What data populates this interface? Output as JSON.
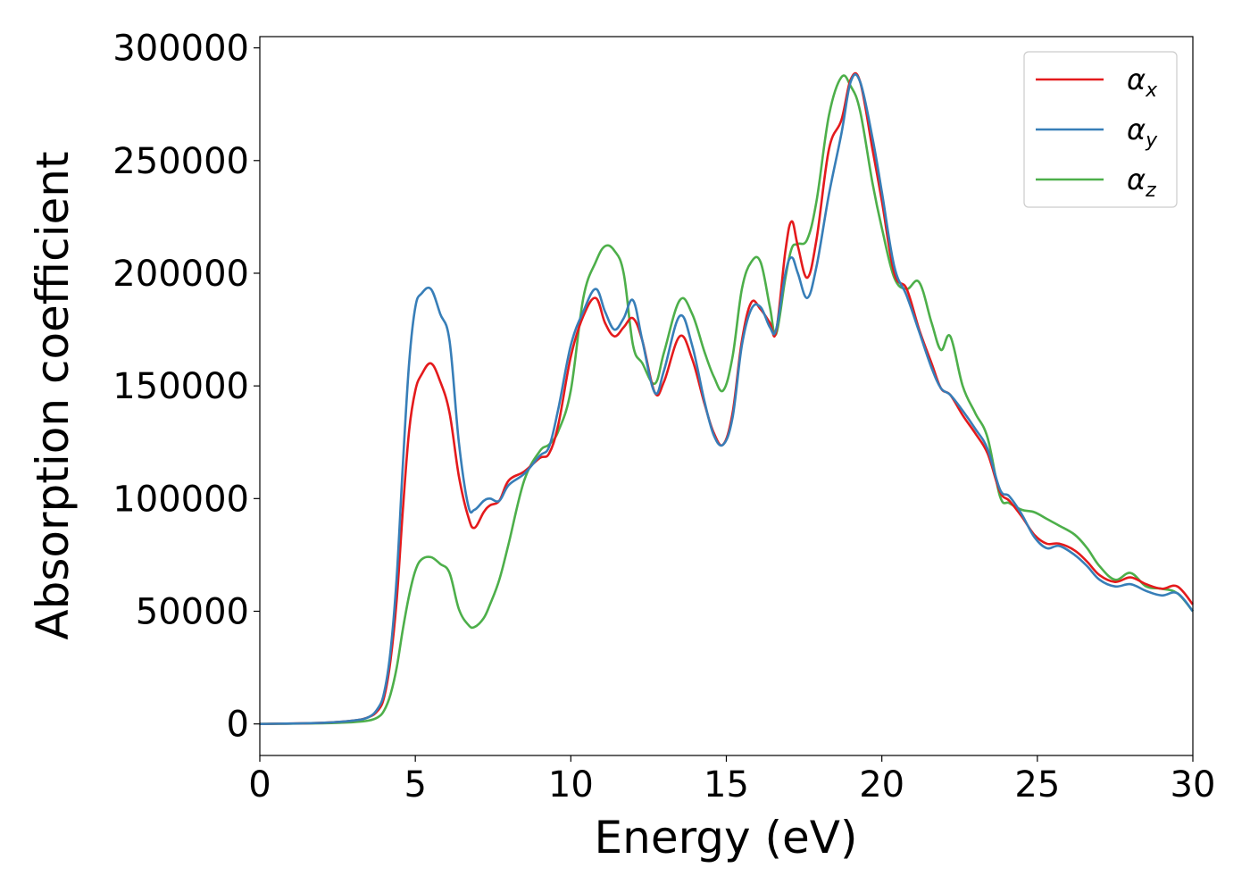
{
  "chart_data": {
    "type": "line",
    "xlabel": "Energy (eV)",
    "ylabel": "Absorption coefficient",
    "xlim": [
      0,
      30
    ],
    "ylim": [
      -14000,
      305000
    ],
    "xticks": [
      0,
      5,
      10,
      15,
      20,
      25,
      30
    ],
    "xtick_labels": [
      "0",
      "5",
      "10",
      "15",
      "20",
      "25",
      "30"
    ],
    "yticks": [
      0,
      50000,
      100000,
      150000,
      200000,
      250000,
      300000
    ],
    "ytick_labels": [
      "0",
      "50000",
      "100000",
      "150000",
      "200000",
      "250000",
      "300000"
    ],
    "grid": false,
    "legend_position": "top-right",
    "series": [
      {
        "name": "α",
        "subscript": "x",
        "color": "#e41a1c",
        "x": [
          0,
          2,
          3,
          3.5,
          3.8,
          4.0,
          4.2,
          4.4,
          4.6,
          4.8,
          5.0,
          5.2,
          5.5,
          5.8,
          6.1,
          6.4,
          6.7,
          6.9,
          7.2,
          7.4,
          7.7,
          8.0,
          8.5,
          9.0,
          9.3,
          9.6,
          10.0,
          10.4,
          10.8,
          11.1,
          11.4,
          11.7,
          12.0,
          12.3,
          12.7,
          13.0,
          13.5,
          13.9,
          14.3,
          14.6,
          14.9,
          15.2,
          15.5,
          15.8,
          16.1,
          16.4,
          16.6,
          16.9,
          17.1,
          17.3,
          17.6,
          17.9,
          18.3,
          18.7,
          19.0,
          19.3,
          19.7,
          20.0,
          20.4,
          20.8,
          21.2,
          21.6,
          21.9,
          22.2,
          22.6,
          23.0,
          23.4,
          23.8,
          24.1,
          24.5,
          24.9,
          25.3,
          25.7,
          26.2,
          26.6,
          27.0,
          27.5,
          28.0,
          28.5,
          29.0,
          29.5,
          30.0
        ],
        "y": [
          0,
          500,
          1500,
          3000,
          6000,
          12000,
          28000,
          55000,
          95000,
          130000,
          148000,
          155000,
          160000,
          152000,
          138000,
          110000,
          92000,
          87000,
          94000,
          97000,
          99000,
          108000,
          112000,
          118000,
          120000,
          133000,
          163000,
          181000,
          189000,
          178000,
          172000,
          176000,
          180000,
          170000,
          147000,
          152000,
          172000,
          162000,
          142000,
          129000,
          124000,
          138000,
          170000,
          187000,
          184000,
          178000,
          174000,
          210000,
          223000,
          212000,
          198000,
          215000,
          255000,
          268000,
          286000,
          285000,
          255000,
          232000,
          200000,
          193000,
          175000,
          160000,
          149000,
          146000,
          137000,
          129000,
          120000,
          103000,
          99000,
          92000,
          84000,
          80000,
          80000,
          77000,
          72000,
          66000,
          63000,
          65000,
          62000,
          60000,
          61000,
          53000
        ]
      },
      {
        "name": "α",
        "subscript": "y",
        "color": "#377eb8",
        "x": [
          0,
          2,
          3,
          3.5,
          3.8,
          4.0,
          4.2,
          4.4,
          4.6,
          4.8,
          5.0,
          5.2,
          5.5,
          5.8,
          6.1,
          6.4,
          6.7,
          6.9,
          7.2,
          7.4,
          7.7,
          8.0,
          8.5,
          9.0,
          9.3,
          9.6,
          10.0,
          10.4,
          10.8,
          11.1,
          11.4,
          11.7,
          12.0,
          12.3,
          12.7,
          13.0,
          13.5,
          13.9,
          14.3,
          14.6,
          14.9,
          15.2,
          15.5,
          15.8,
          16.1,
          16.4,
          16.6,
          16.9,
          17.1,
          17.3,
          17.6,
          17.9,
          18.3,
          18.7,
          19.0,
          19.3,
          19.7,
          20.0,
          20.4,
          20.8,
          21.2,
          21.6,
          21.9,
          22.2,
          22.6,
          23.0,
          23.4,
          23.8,
          24.1,
          24.5,
          24.9,
          25.3,
          25.7,
          26.2,
          26.6,
          27.0,
          27.5,
          28.0,
          28.5,
          29.0,
          29.5,
          30.0
        ],
        "y": [
          0,
          500,
          1500,
          3000,
          7000,
          14000,
          32000,
          65000,
          115000,
          160000,
          185000,
          191000,
          193000,
          182000,
          170000,
          125000,
          97000,
          95000,
          99000,
          100000,
          99000,
          106000,
          111000,
          119000,
          123000,
          140000,
          168000,
          183000,
          193000,
          183000,
          175000,
          180000,
          188000,
          170000,
          147000,
          157000,
          181000,
          168000,
          143000,
          128000,
          124000,
          136000,
          168000,
          184000,
          185000,
          176000,
          175000,
          200000,
          207000,
          200000,
          189000,
          203000,
          235000,
          262000,
          285000,
          285000,
          260000,
          236000,
          203000,
          190000,
          174000,
          158000,
          149000,
          146000,
          139000,
          131000,
          122000,
          104000,
          101000,
          93000,
          83000,
          78000,
          79000,
          75000,
          70000,
          64000,
          61000,
          62000,
          59000,
          57000,
          58000,
          50000
        ]
      },
      {
        "name": "α",
        "subscript": "z",
        "color": "#4daf4a",
        "x": [
          0,
          2,
          3,
          3.5,
          3.8,
          4.0,
          4.2,
          4.4,
          4.6,
          4.8,
          5.0,
          5.2,
          5.5,
          5.8,
          6.1,
          6.4,
          6.7,
          6.9,
          7.2,
          7.4,
          7.7,
          8.0,
          8.5,
          9.0,
          9.3,
          9.6,
          10.0,
          10.4,
          10.8,
          11.1,
          11.4,
          11.7,
          12.0,
          12.3,
          12.7,
          13.0,
          13.5,
          13.9,
          14.3,
          14.6,
          14.9,
          15.2,
          15.5,
          15.8,
          16.1,
          16.4,
          16.6,
          16.9,
          17.1,
          17.3,
          17.6,
          17.9,
          18.3,
          18.7,
          19.0,
          19.3,
          19.7,
          20.0,
          20.4,
          20.8,
          21.2,
          21.6,
          21.9,
          22.2,
          22.6,
          23.0,
          23.4,
          23.8,
          24.1,
          24.5,
          24.9,
          25.3,
          25.7,
          26.2,
          26.6,
          27.0,
          27.5,
          28.0,
          28.5,
          29.0,
          29.5,
          30.0
        ],
        "y": [
          0,
          300,
          800,
          1500,
          3000,
          6000,
          13000,
          25000,
          42000,
          57000,
          68000,
          73000,
          74000,
          71000,
          67000,
          51000,
          44000,
          43000,
          47000,
          53000,
          64000,
          80000,
          108000,
          121000,
          124000,
          130000,
          148000,
          189000,
          205000,
          212000,
          210000,
          200000,
          168000,
          160000,
          151000,
          165000,
          188000,
          182000,
          165000,
          154000,
          148000,
          163000,
          193000,
          205000,
          205000,
          185000,
          173000,
          198000,
          211000,
          213000,
          215000,
          232000,
          270000,
          287000,
          283000,
          272000,
          240000,
          220000,
          198000,
          193000,
          196000,
          178000,
          166000,
          172000,
          150000,
          138000,
          127000,
          101000,
          98000,
          95000,
          94000,
          91000,
          88000,
          84000,
          78000,
          70000,
          64000,
          67000,
          61000,
          60000,
          58000,
          50000
        ]
      }
    ]
  }
}
